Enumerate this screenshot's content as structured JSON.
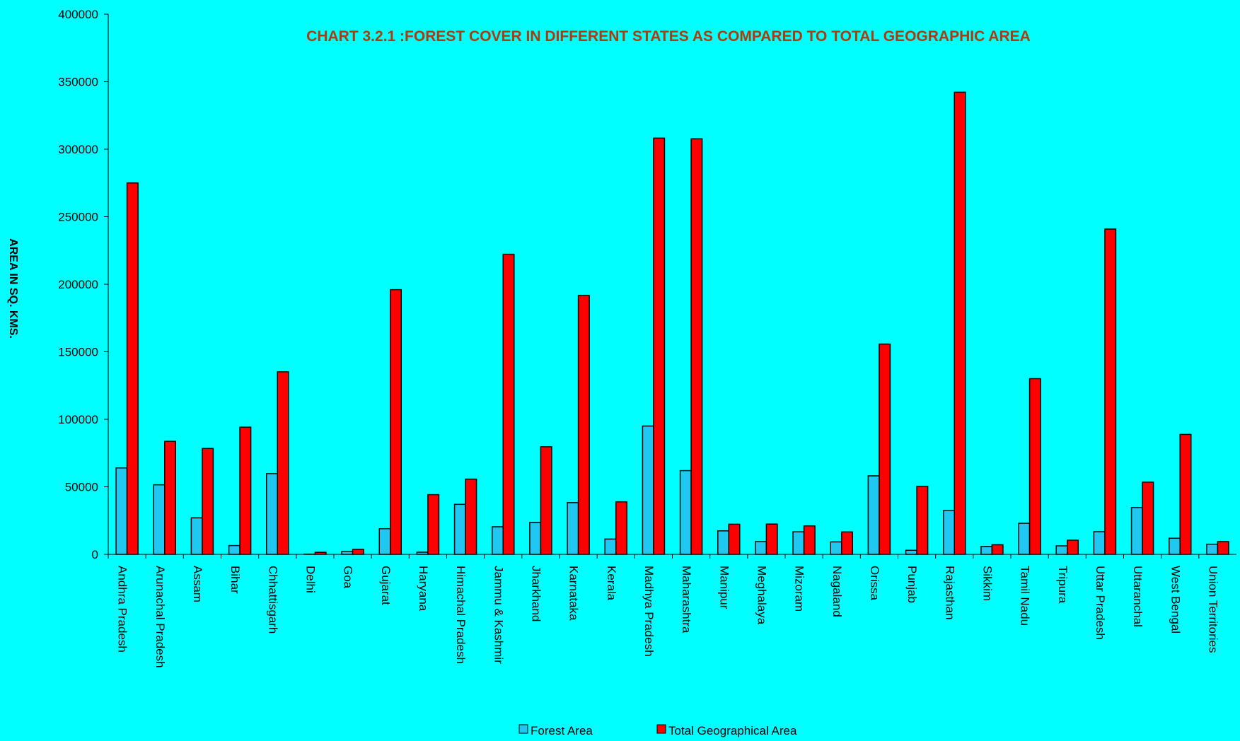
{
  "chart_data": {
    "type": "bar",
    "title": "CHART 3.2.1 :FOREST COVER IN DIFFERENT STATES AS COMPARED TO TOTAL GEOGRAPHIC AREA",
    "y_label": "AREA IN SQ. KMS.",
    "categories": [
      "Andhra Pradesh",
      "Arunachal Pradesh",
      "Assam",
      "Bihar",
      "Chhattisgarh",
      "Delhi",
      "Goa",
      "Gujarat",
      "Haryana",
      "Himachal Pradesh",
      "Jammu & Kashmir",
      "Jharkhand",
      "Karnataka",
      "Kerala",
      "Madhya Pradesh",
      "Maharashtra",
      "Manipur",
      "Meghalaya",
      "Mizoram",
      "Nagaland",
      "Orissa",
      "Punjab",
      "Rajasthan",
      "Sikkim",
      "Tamil Nadu",
      "Tripura",
      "Uttar Pradesh",
      "Uttaranchal",
      "West Bengal",
      "Union Territories"
    ],
    "series": [
      {
        "name": "Forest Area",
        "color": "#1ec8f0",
        "values": [
          64000,
          51500,
          27000,
          6500,
          59800,
          170,
          2100,
          19000,
          1600,
          37000,
          20400,
          23600,
          38300,
          11300,
          95000,
          62000,
          17400,
          9500,
          16700,
          9200,
          58100,
          3000,
          32500,
          5800,
          23000,
          6300,
          16800,
          34700,
          11900,
          7500
        ]
      },
      {
        "name": "Total Geographical Area",
        "color": "#ff0000",
        "values": [
          275000,
          83700,
          78400,
          94200,
          135200,
          1483,
          3700,
          196000,
          44200,
          55700,
          222200,
          79700,
          191800,
          38900,
          308200,
          307700,
          22300,
          22400,
          21100,
          16600,
          155700,
          50400,
          342200,
          7100,
          130100,
          10500,
          240900,
          53500,
          88800,
          9500
        ]
      }
    ],
    "ylim": [
      0,
      400000
    ],
    "yticks": [
      0,
      50000,
      100000,
      150000,
      200000,
      250000,
      300000,
      350000,
      400000
    ],
    "grid": false,
    "legend": "bottom"
  }
}
